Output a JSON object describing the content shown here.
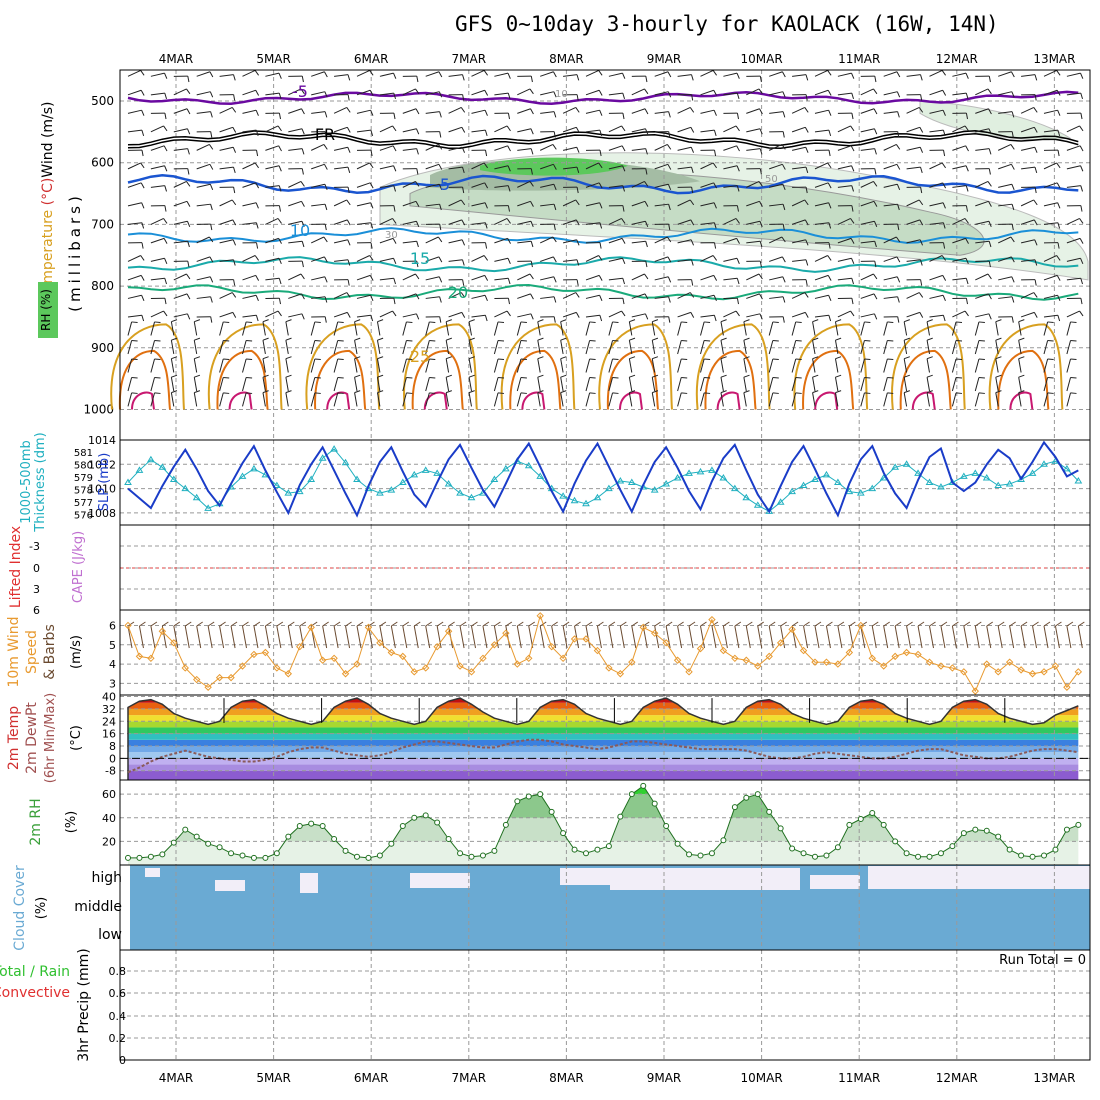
{
  "title": "GFS 0~10day 3-hourly for KAOLACK (16W, 14N)",
  "date_labels": [
    "4MAR",
    "5MAR",
    "6MAR",
    "7MAR",
    "8MAR",
    "9MAR",
    "10MAR",
    "11MAR",
    "12MAR",
    "13MAR"
  ],
  "run_total": "Run Total = 0",
  "colors": {
    "cloud": "#6aaad3",
    "temp_isotherm_cold": "#6a0aa0",
    "freezing": "#000000",
    "isotherm_5": "#1a55d0",
    "isotherm_10": "#1a8fd8",
    "isotherm_15": "#1aaaaa",
    "isotherm_20": "#1aaa7a",
    "isotherm_25": "#d8a020",
    "isotherm_30": "#e07010",
    "isotherm_35": "#c81870",
    "slp": "#1a3cc8",
    "thickness": "#20b0c0",
    "wind10": "#e89a30",
    "rh2m": "#3aa03a"
  },
  "chart_data": [
    {
      "panel": "upper-air",
      "type": "heatmap",
      "ylabel": "Temperature (°C) Wind (m/s)",
      "ylabel_parts": {
        "temp": "Temperature",
        "unit": "(°C)",
        "wind": "Wind (m/s)"
      },
      "y2label": "(millibars)",
      "legend_label": "RH (%)",
      "yticks": [
        500,
        600,
        700,
        800,
        900,
        1000
      ],
      "isotherm_labels": [
        {
          "label": "-5",
          "value": -5,
          "level": 495
        },
        {
          "label": "FR",
          "value": 0,
          "level": 570
        },
        {
          "label": "5",
          "value": 5,
          "level": 640
        },
        {
          "label": "10",
          "value": 10,
          "level": 718
        },
        {
          "label": "15",
          "value": 15,
          "level": 765
        },
        {
          "label": "20",
          "value": 20,
          "level": 810
        },
        {
          "label": "25",
          "value": 25,
          "level": 880
        }
      ],
      "rh_contour_labels": [
        "10",
        "30",
        "50"
      ]
    },
    {
      "panel": "slp-thickness",
      "type": "line",
      "ylabel_left": "1000-500mb Thickness (dm)",
      "ylabel_parts": {
        "a": "1000-500mb",
        "b": "Thickness (dm)"
      },
      "ylabel_right": "SLP (mb)",
      "yticks_left": [
        "581",
        "580",
        "579",
        "578",
        "577",
        "576"
      ],
      "yticks_right": [
        "1014",
        "1012",
        "1010",
        "1008"
      ],
      "ylim_slp": [
        1007,
        1014
      ],
      "series": [
        {
          "name": "SLP (mb)",
          "values": [
            1010.0,
            1009.2,
            1008.4,
            1010.2,
            1011.8,
            1013.2,
            1011.6,
            1009.8,
            1008.6,
            1010.4,
            1012.1,
            1013.5,
            1011.5,
            1009.7,
            1008.0,
            1010.3,
            1012.0,
            1013.4,
            1011.5,
            1009.6,
            1007.8,
            1010.2,
            1012.2,
            1013.4,
            1011.4,
            1009.5,
            1008.5,
            1010.5,
            1012.4,
            1013.6,
            1011.7,
            1009.9,
            1008.5,
            1010.4,
            1012.4,
            1013.7,
            1011.8,
            1009.8,
            1008.1,
            1010.4,
            1012.3,
            1013.7,
            1011.8,
            1009.9,
            1008.1,
            1010.3,
            1012.2,
            1013.4,
            1011.7,
            1009.8,
            1008.3,
            1010.6,
            1012.5,
            1013.6,
            1011.5,
            1009.5,
            1008.1,
            1010.2,
            1012.2,
            1013.5,
            1011.6,
            1009.6,
            1007.8,
            1010.4,
            1012.4,
            1013.5,
            1011.3,
            1009.6,
            1008.4,
            1010.7,
            1012.6,
            1013.3,
            1010.5,
            1009.8,
            1010.5,
            1012.0,
            1013.2,
            1012.5,
            1010.8,
            1012.2,
            1013.8,
            1012.6,
            1011.0,
            1011.5
          ]
        },
        {
          "name": "Thickness (dm)",
          "values": [
            579.0,
            579.8,
            580.5,
            580.0,
            579.2,
            578.6,
            578.0,
            577.3,
            577.6,
            578.7,
            579.4,
            579.9,
            579.5,
            578.8,
            578.3,
            578.4,
            579.2,
            580.6,
            581.2,
            580.3,
            579.2,
            578.6,
            578.3,
            578.5,
            579.0,
            579.5,
            579.8,
            579.6,
            578.9,
            578.3,
            578.0,
            578.3,
            579.2,
            579.9,
            580.4,
            580.1,
            579.4,
            578.6,
            578.1,
            577.8,
            577.6,
            578.0,
            578.6,
            579.1,
            579.0,
            578.7,
            578.5,
            578.9,
            579.3,
            579.6,
            579.7,
            579.8,
            579.3,
            578.6,
            578.0,
            577.5,
            577.1,
            577.7,
            578.4,
            578.8,
            579.2,
            579.5,
            579.0,
            578.4,
            578.3,
            578.6,
            579.3,
            580.0,
            580.2,
            579.6,
            579.0,
            578.7,
            579.0,
            579.4,
            579.6,
            579.3,
            578.8,
            578.9,
            579.2,
            579.6,
            580.2,
            580.4,
            579.9,
            579.1
          ]
        }
      ]
    },
    {
      "panel": "lifted-index-cape",
      "type": "line",
      "ylabel_left": "Lifted Index",
      "ylabel_right": "CAPE (J/kg)",
      "yticks": [
        "-3",
        "0",
        "3",
        "6"
      ],
      "ylim": [
        -6,
        6
      ],
      "series": [
        {
          "name": "Lifted Index",
          "values": []
        }
      ]
    },
    {
      "panel": "10m-wind",
      "type": "line",
      "ylabel": "10m Wind Speed & Barbs",
      "ylabel_parts": {
        "a": "10m Wind",
        "b": "Speed",
        "c": "& Barbs"
      },
      "y2label": "(m/s)",
      "yticks": [
        "3",
        "4",
        "5",
        "6"
      ],
      "ylim": [
        2.4,
        6.8
      ],
      "series": [
        {
          "name": "10m Wind Speed",
          "values": [
            6.0,
            4.4,
            4.3,
            5.7,
            5.1,
            3.8,
            3.2,
            2.8,
            3.3,
            3.3,
            3.9,
            4.5,
            4.6,
            3.8,
            3.5,
            4.9,
            5.9,
            4.2,
            4.3,
            3.5,
            4.0,
            5.9,
            5.1,
            4.6,
            4.4,
            3.6,
            3.8,
            4.9,
            5.7,
            3.9,
            3.6,
            4.3,
            5.0,
            5.6,
            4.0,
            4.3,
            6.5,
            4.9,
            4.3,
            5.3,
            5.3,
            4.7,
            3.8,
            3.5,
            4.1,
            5.9,
            5.6,
            5.1,
            4.2,
            3.6,
            4.8,
            6.3,
            4.7,
            4.3,
            4.2,
            3.9,
            4.4,
            5.1,
            5.8,
            4.7,
            4.1,
            4.1,
            4.0,
            4.6,
            6.0,
            4.3,
            3.9,
            4.4,
            4.6,
            4.5,
            4.1,
            3.9,
            3.8,
            3.6,
            2.6,
            4.0,
            3.6,
            4.1,
            3.7,
            3.5,
            3.6,
            3.9,
            2.8,
            3.6
          ]
        }
      ]
    },
    {
      "panel": "2m-temperature",
      "type": "area",
      "ylabel": "2m Temp 2m DewPt (6hr Min/Max)",
      "ylabel_parts": {
        "a": "2m Temp",
        "b": "2m DewPt",
        "c": "(6hr Min/Max)"
      },
      "y2label": "(°C)",
      "yticks": [
        "40",
        "32",
        "24",
        "16",
        "8",
        "0",
        "-8"
      ],
      "ylim": [
        -14,
        41
      ],
      "series": [
        {
          "name": "2m Temp",
          "values": [
            33,
            37,
            38,
            35,
            29,
            26,
            24,
            22,
            24,
            33,
            37,
            38,
            34,
            29,
            26,
            24,
            22,
            24,
            33,
            37,
            39,
            35,
            29,
            26,
            24,
            22,
            24,
            33,
            37,
            39,
            35,
            30,
            26,
            24,
            22,
            24,
            33,
            37,
            38,
            35,
            29,
            26,
            24,
            22,
            24,
            33,
            37,
            39,
            35,
            29,
            26,
            24,
            22,
            24,
            33,
            37,
            38,
            35,
            29,
            26,
            24,
            22,
            24,
            33,
            37,
            38,
            35,
            29,
            26,
            24,
            22,
            24,
            33,
            37,
            38,
            35,
            29,
            26,
            24,
            22,
            23,
            28,
            31,
            34
          ]
        },
        {
          "name": "2m DewPt",
          "values": [
            -9,
            -6,
            -2,
            1,
            3,
            5,
            3,
            1,
            0,
            -1,
            -2,
            -2,
            -1,
            1,
            4,
            6,
            7,
            7,
            5,
            3,
            2,
            1,
            2,
            4,
            7,
            9,
            11,
            11,
            10,
            9,
            8,
            7,
            7,
            9,
            11,
            12,
            12,
            11,
            9,
            8,
            7,
            6,
            7,
            9,
            11,
            11,
            10,
            9,
            8,
            7,
            6,
            6,
            6,
            6,
            5,
            3,
            1,
            0,
            0,
            1,
            3,
            4,
            3,
            2,
            1,
            0,
            0,
            1,
            3,
            5,
            6,
            6,
            4,
            2,
            1,
            0,
            0,
            1,
            3,
            5,
            6,
            6,
            5,
            4
          ]
        }
      ]
    },
    {
      "panel": "2m-rh",
      "type": "area",
      "ylabel": "2m RH",
      "y2label": "(%)",
      "yticks": [
        "60",
        "40",
        "20"
      ],
      "ylim": [
        0,
        72
      ],
      "series": [
        {
          "name": "2m RH",
          "values": [
            6,
            6,
            7,
            9,
            19,
            30,
            24,
            18,
            15,
            10,
            8,
            6,
            6,
            10,
            24,
            33,
            35,
            33,
            22,
            12,
            7,
            6,
            8,
            18,
            33,
            40,
            42,
            36,
            22,
            10,
            7,
            8,
            12,
            34,
            54,
            58,
            60,
            45,
            27,
            13,
            10,
            13,
            16,
            41,
            60,
            67,
            52,
            33,
            18,
            9,
            8,
            10,
            21,
            49,
            57,
            60,
            45,
            31,
            14,
            10,
            7,
            8,
            15,
            34,
            39,
            44,
            34,
            20,
            10,
            7,
            7,
            10,
            16,
            27,
            30,
            29,
            24,
            13,
            8,
            7,
            8,
            13,
            30,
            34
          ]
        }
      ]
    },
    {
      "panel": "cloud-cover",
      "type": "heatmap",
      "ylabel": "Cloud Cover (%)",
      "levels": [
        "high",
        "middle",
        "low"
      ]
    },
    {
      "panel": "precip",
      "type": "bar",
      "ylabel": "3hr Precip (mm)",
      "legend_total": "Total / Rain",
      "legend_convective": "Convective",
      "yticks": [
        "0.8",
        "0.6",
        "0.4",
        "0.2",
        "0"
      ],
      "ylim": [
        0,
        1
      ],
      "values": []
    }
  ]
}
